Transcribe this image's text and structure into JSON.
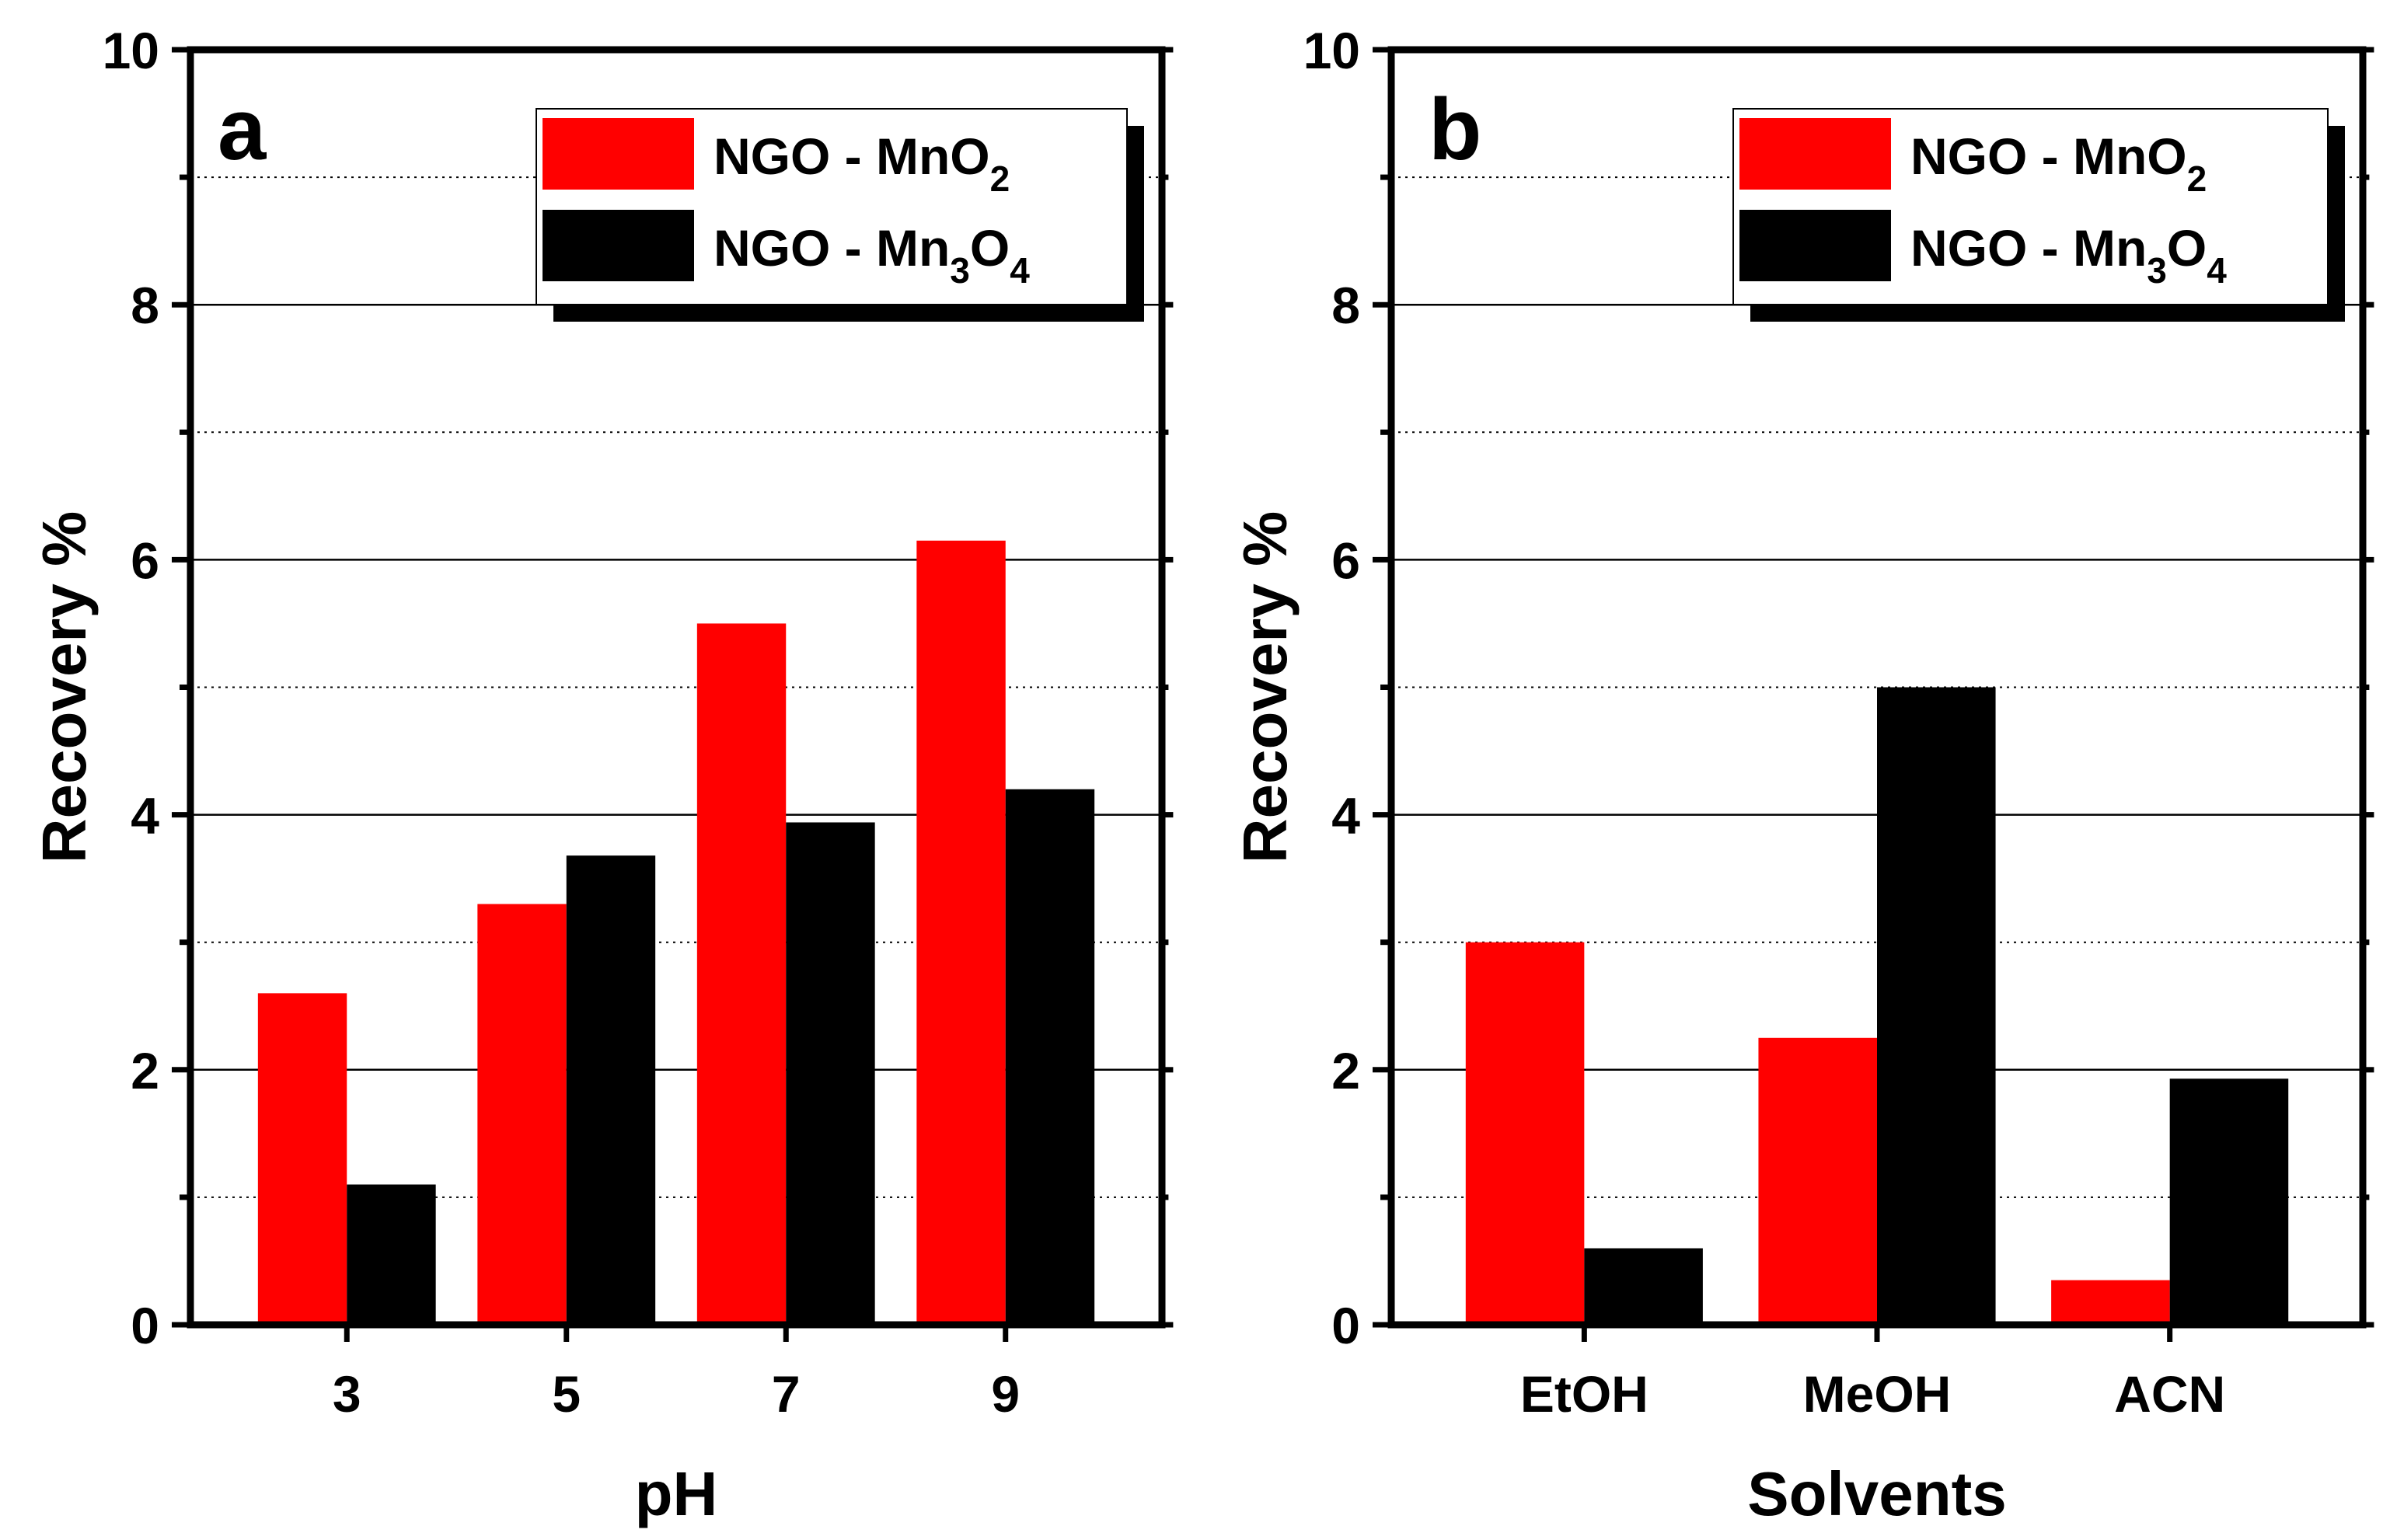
{
  "colors": {
    "series_red": "#ff0000",
    "series_black": "#000000",
    "axis": "#000000",
    "grid": "#000000"
  },
  "chart_data": [
    {
      "type": "bar",
      "panel_label": "a",
      "title": "",
      "xlabel": "pH",
      "ylabel": "Recovery %",
      "categories": [
        "3",
        "5",
        "7",
        "9"
      ],
      "series": [
        {
          "name": "NGO - MnO2",
          "name_main": "NGO - MnO",
          "name_sub": "2",
          "name_tail": "",
          "name_sub2": "",
          "color": "#ff0000",
          "values": [
            2.6,
            3.3,
            5.5,
            6.15
          ]
        },
        {
          "name": "NGO - Mn3O4",
          "name_main": "NGO - Mn",
          "name_sub": "3",
          "name_tail": "O",
          "name_sub2": "4",
          "color": "#000000",
          "values": [
            1.1,
            3.68,
            3.94,
            4.2
          ]
        }
      ],
      "ylim": [
        0,
        10
      ],
      "yticks": [
        0,
        2,
        4,
        6,
        8,
        10
      ],
      "ytick_labels": [
        "0",
        "2",
        "4",
        "6",
        "8",
        "10"
      ],
      "grid": "major solid, minor dotted",
      "legend": "top-right"
    },
    {
      "type": "bar",
      "panel_label": "b",
      "title": "",
      "xlabel": "Solvents",
      "ylabel": "Recovery %",
      "categories": [
        "EtOH",
        "MeOH",
        "ACN"
      ],
      "series": [
        {
          "name": "NGO - MnO2",
          "name_main": "NGO - MnO",
          "name_sub": "2",
          "name_tail": "",
          "name_sub2": "",
          "color": "#ff0000",
          "values": [
            3.0,
            2.25,
            0.35
          ]
        },
        {
          "name": "NGO - Mn3O4",
          "name_main": "NGO - Mn",
          "name_sub": "3",
          "name_tail": "O",
          "name_sub2": "4",
          "color": "#000000",
          "values": [
            0.6,
            5.0,
            1.93
          ]
        }
      ],
      "ylim": [
        0,
        10
      ],
      "yticks": [
        0,
        2,
        4,
        6,
        8,
        10
      ],
      "ytick_labels": [
        "0",
        "2",
        "4",
        "6",
        "8",
        "10"
      ],
      "grid": "major solid, minor dotted",
      "legend": "top-right"
    }
  ]
}
